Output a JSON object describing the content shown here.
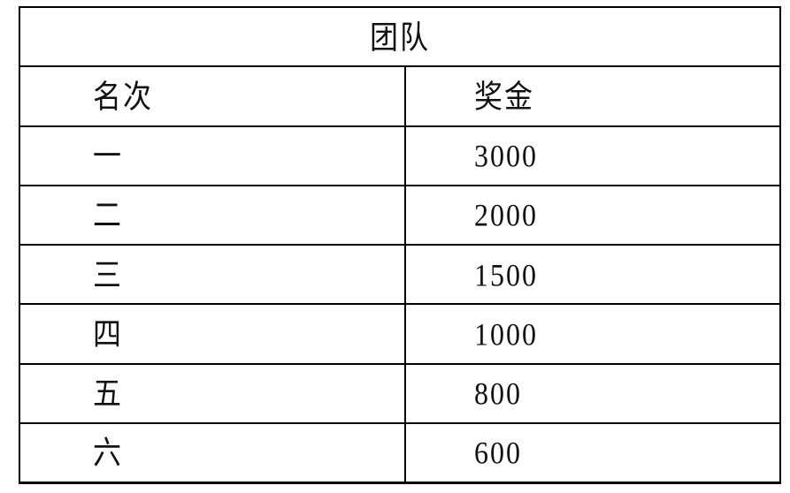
{
  "colors": {
    "background": "#ffffff",
    "border": "#000000",
    "text": "#111111"
  },
  "table": {
    "title": "团队",
    "columns": {
      "rank": "名次",
      "prize": "奖金"
    },
    "rows": [
      {
        "rank": "一",
        "prize": "3000"
      },
      {
        "rank": "二",
        "prize": "2000"
      },
      {
        "rank": "三",
        "prize": "1500"
      },
      {
        "rank": "四",
        "prize": "1000"
      },
      {
        "rank": "五",
        "prize": "800"
      },
      {
        "rank": "六",
        "prize": "600"
      }
    ]
  }
}
